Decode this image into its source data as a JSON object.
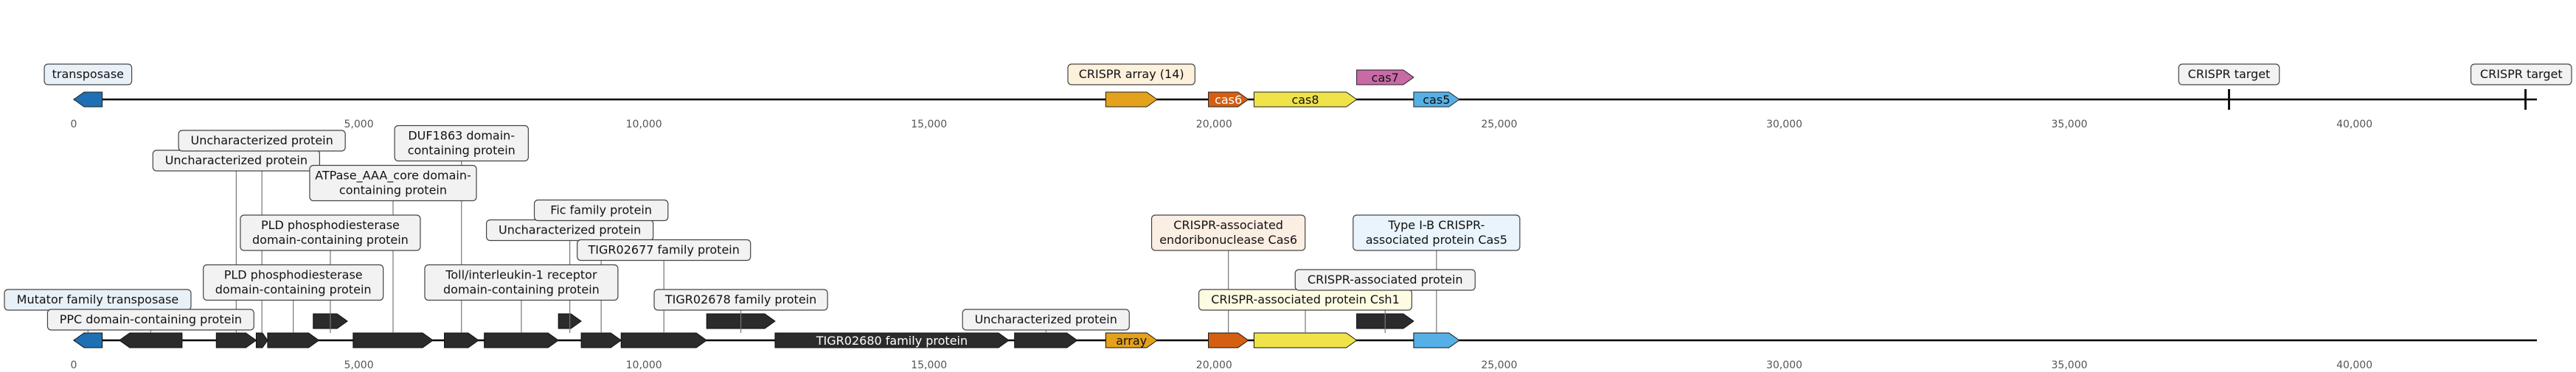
{
  "axis": {
    "ticks": [
      {
        "value": 0,
        "label": "0"
      },
      {
        "value": 5000,
        "label": "5,000"
      },
      {
        "value": 10000,
        "label": "10,000"
      },
      {
        "value": 15000,
        "label": "15,000"
      },
      {
        "value": 20000,
        "label": "20,000"
      },
      {
        "value": 25000,
        "label": "25,000"
      },
      {
        "value": 30000,
        "label": "30,000"
      },
      {
        "value": 35000,
        "label": "35,000"
      },
      {
        "value": 40000,
        "label": "40,000"
      }
    ],
    "domain": [
      0,
      43200
    ]
  },
  "colors": {
    "line": "#000000",
    "tick_label": "#555555",
    "dark_gene": "#2b2b2b",
    "transposase": "#1f6fb4",
    "crispr_array": "#e3a11c",
    "cas6": "#d45f12",
    "cas8": "#f0e34a",
    "cas7": "#c76aa6",
    "cas5": "#56b0e6",
    "label_bg_default": "#f2f2f2",
    "label_bg_transposase": "#e8f1f8",
    "label_bg_array": "#fdf1dc",
    "label_bg_cas6": "#fbeee3",
    "label_bg_cas8": "#fdfbe2",
    "label_bg_cas7": "#f6e8f1",
    "label_bg_cas5": "#e9f4fc"
  },
  "track1": {
    "features": [
      {
        "start": 0,
        "end": 500,
        "strand": -1,
        "color": "#1f6fb4",
        "label": ""
      },
      {
        "start": 18100,
        "end": 19000,
        "strand": 1,
        "color": "#e3a11c",
        "label": ""
      },
      {
        "start": 19900,
        "end": 20600,
        "strand": 1,
        "color": "#d45f12",
        "label": "cas6"
      },
      {
        "start": 20700,
        "end": 22500,
        "strand": 1,
        "color": "#f0e34a",
        "label": "cas8"
      },
      {
        "start": 22500,
        "end": 23500,
        "strand": 1,
        "color": "#c76aa6",
        "label": "cas7",
        "above": true
      },
      {
        "start": 23500,
        "end": 24300,
        "strand": 1,
        "color": "#56b0e6",
        "label": "cas5"
      }
    ],
    "marks": [
      {
        "at": 37800
      },
      {
        "at": 43000
      }
    ],
    "callouts": [
      {
        "text": "transposase",
        "at": 250,
        "bg": "#e8f1f8"
      },
      {
        "text": "CRISPR array (14)",
        "at": 18550,
        "bg": "#fdf1dc"
      },
      {
        "text": "CRISPR target",
        "at": 37800,
        "bg": "#f2f2f2"
      },
      {
        "text": "CRISPR target",
        "at": 43000,
        "bg": "#f2f2f2"
      }
    ]
  },
  "track2": {
    "features": [
      {
        "start": 0,
        "end": 500,
        "strand": -1,
        "color": "#1f6fb4",
        "label": ""
      },
      {
        "start": 800,
        "end": 1900,
        "strand": -1,
        "color": "#2b2b2b",
        "label": ""
      },
      {
        "start": 2500,
        "end": 3200,
        "strand": 1,
        "color": "#2b2b2b",
        "label": ""
      },
      {
        "start": 3200,
        "end": 3400,
        "strand": 1,
        "color": "#2b2b2b",
        "label": ""
      },
      {
        "start": 3400,
        "end": 4300,
        "strand": 1,
        "color": "#2b2b2b",
        "label": ""
      },
      {
        "start": 4200,
        "end": 4800,
        "strand": 1,
        "color": "#2b2b2b",
        "label": "",
        "above": true
      },
      {
        "start": 4900,
        "end": 6300,
        "strand": 1,
        "color": "#2b2b2b",
        "label": ""
      },
      {
        "start": 6500,
        "end": 7100,
        "strand": 1,
        "color": "#2b2b2b",
        "label": ""
      },
      {
        "start": 7200,
        "end": 8500,
        "strand": 1,
        "color": "#2b2b2b",
        "label": ""
      },
      {
        "start": 8500,
        "end": 8900,
        "strand": 1,
        "color": "#2b2b2b",
        "label": "",
        "above": true
      },
      {
        "start": 8900,
        "end": 9600,
        "strand": 1,
        "color": "#2b2b2b",
        "label": ""
      },
      {
        "start": 9600,
        "end": 11100,
        "strand": 1,
        "color": "#2b2b2b",
        "label": ""
      },
      {
        "start": 11100,
        "end": 12300,
        "strand": 1,
        "color": "#2b2b2b",
        "label": "",
        "above": true
      },
      {
        "start": 12300,
        "end": 16400,
        "strand": 1,
        "color": "#2b2b2b",
        "label": "TIGR02680 family protein"
      },
      {
        "start": 16500,
        "end": 17600,
        "strand": 1,
        "color": "#2b2b2b",
        "label": ""
      },
      {
        "start": 18100,
        "end": 19000,
        "strand": 1,
        "color": "#e3a11c",
        "label": "array"
      },
      {
        "start": 19900,
        "end": 20600,
        "strand": 1,
        "color": "#d45f12",
        "label": ""
      },
      {
        "start": 20700,
        "end": 22500,
        "strand": 1,
        "color": "#f0e34a",
        "label": ""
      },
      {
        "start": 22500,
        "end": 23500,
        "strand": 1,
        "color": "#2b2b2b",
        "label": "",
        "above": true
      },
      {
        "start": 23500,
        "end": 24300,
        "strand": 1,
        "color": "#56b0e6",
        "label": ""
      }
    ],
    "callouts": [
      {
        "text": "Mutator family transposase",
        "at": 250,
        "level": 2,
        "bg": "#e8f1f8"
      },
      {
        "text": "PPC domain-containing protein",
        "at": 1350,
        "level": 1,
        "bg": "#f2f2f2"
      },
      {
        "text": "Uncharacterized protein",
        "at": 2850,
        "level": 9,
        "bg": "#f2f2f2"
      },
      {
        "text": "Uncharacterized protein",
        "at": 3300,
        "level": 10,
        "bg": "#f2f2f2"
      },
      {
        "text": "PLD phosphodiesterase\ndomain-containing protein",
        "at": 3850,
        "level": 2.5,
        "bg": "#f2f2f2"
      },
      {
        "text": "PLD phosphodiesterase\ndomain-containing protein",
        "at": 4500,
        "level": 5,
        "bg": "#f2f2f2"
      },
      {
        "text": "ATPase_AAA_core domain-\ncontaining protein",
        "at": 5600,
        "level": 7.5,
        "bg": "#f2f2f2"
      },
      {
        "text": "DUF1863 domain-\ncontaining protein",
        "at": 6800,
        "level": 9.5,
        "bg": "#f2f2f2"
      },
      {
        "text": "Toll/interleukin-1 receptor\ndomain-containing protein",
        "at": 7850,
        "level": 2.5,
        "bg": "#f2f2f2"
      },
      {
        "text": "Uncharacterized protein",
        "at": 8700,
        "level": 5.5,
        "bg": "#f2f2f2"
      },
      {
        "text": "Fic family protein",
        "at": 9250,
        "level": 6.5,
        "bg": "#f2f2f2"
      },
      {
        "text": "TIGR02677 family protein",
        "at": 10350,
        "level": 4.5,
        "bg": "#f2f2f2"
      },
      {
        "text": "TIGR02678 family protein",
        "at": 11700,
        "level": 2,
        "bg": "#f2f2f2"
      },
      {
        "text": "Uncharacterized protein",
        "at": 17050,
        "level": 1,
        "bg": "#f2f2f2"
      },
      {
        "text": "CRISPR-associated\nendoribonuclease Cas6",
        "at": 20250,
        "level": 5,
        "bg": "#fbeee3"
      },
      {
        "text": "CRISPR-associated protein Csh1",
        "at": 21600,
        "level": 2,
        "bg": "#fdfbe2"
      },
      {
        "text": "CRISPR-associated protein",
        "at": 23000,
        "level": 3,
        "bg": "#f2f2f2"
      },
      {
        "text": "Type I-B CRISPR-\nassociated protein Cas5",
        "at": 23900,
        "level": 5,
        "bg": "#e9f4fc"
      }
    ]
  }
}
